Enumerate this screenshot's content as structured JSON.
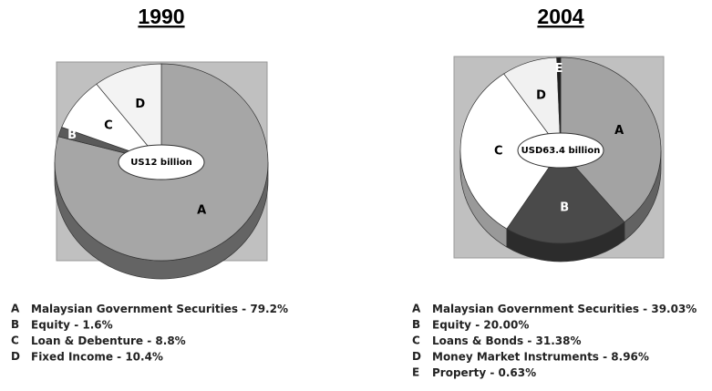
{
  "chart_data": [
    {
      "type": "pie",
      "title": "1990",
      "center_label": "US12 billion",
      "categories": [
        "A",
        "B",
        "C",
        "D"
      ],
      "names": [
        "Malaysian Government Securities",
        "Equity",
        "Loan & Debenture",
        "Fixed Income"
      ],
      "values": [
        79.2,
        1.6,
        8.8,
        10.4
      ],
      "value_labels": [
        "79.2%",
        "1.6%",
        "8.8%",
        "10.4%"
      ],
      "colors": [
        "#a6a6a6",
        "#5a5a5a",
        "#ffffff",
        "#f3f3f3"
      ]
    },
    {
      "type": "pie",
      "title": "2004",
      "center_label": "USD63.4 billion",
      "categories": [
        "A",
        "B",
        "C",
        "D",
        "E"
      ],
      "names": [
        "Malaysian Government Securities",
        "Equity",
        "Loans & Bonds",
        "Money Market Instruments",
        "Property"
      ],
      "values": [
        39.03,
        20.0,
        31.38,
        8.96,
        0.63
      ],
      "value_labels": [
        "39.03%",
        "20.00%",
        "31.38%",
        "8.96%",
        "0.63%"
      ],
      "colors": [
        "#a3a3a3",
        "#4a4a4a",
        "#ffffff",
        "#f1f1f1",
        "#1e1e1e"
      ]
    }
  ]
}
